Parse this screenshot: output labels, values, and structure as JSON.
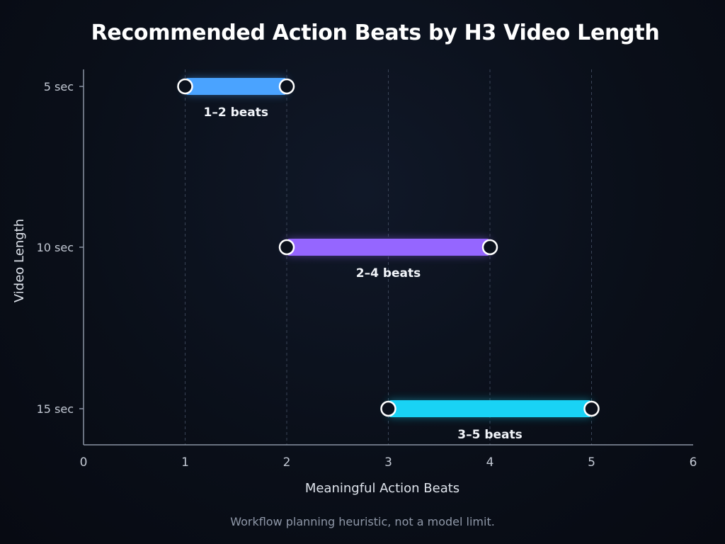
{
  "chart_data": {
    "type": "range-bar",
    "title": "Recommended Action Beats by H3 Video Length",
    "xlabel": "Meaningful Action Beats",
    "ylabel": "Video Length",
    "xlim": [
      0,
      6
    ],
    "x_ticks": [
      "0",
      "1",
      "2",
      "3",
      "4",
      "5",
      "6"
    ],
    "grid": "vertical dashed at 1-5",
    "categories": [
      "5 sec",
      "10 sec",
      "15 sec"
    ],
    "ranges": [
      {
        "category": "5 sec",
        "start": 1,
        "end": 2,
        "label": "1–2 beats",
        "color": "#4aa3ff"
      },
      {
        "category": "10 sec",
        "start": 2,
        "end": 4,
        "label": "2–4 beats",
        "color": "#9566ff"
      },
      {
        "category": "15 sec",
        "start": 3,
        "end": 5,
        "label": "3–5 beats",
        "color": "#19d3f5"
      }
    ],
    "footnote": "Workflow planning heuristic, not a model limit."
  }
}
